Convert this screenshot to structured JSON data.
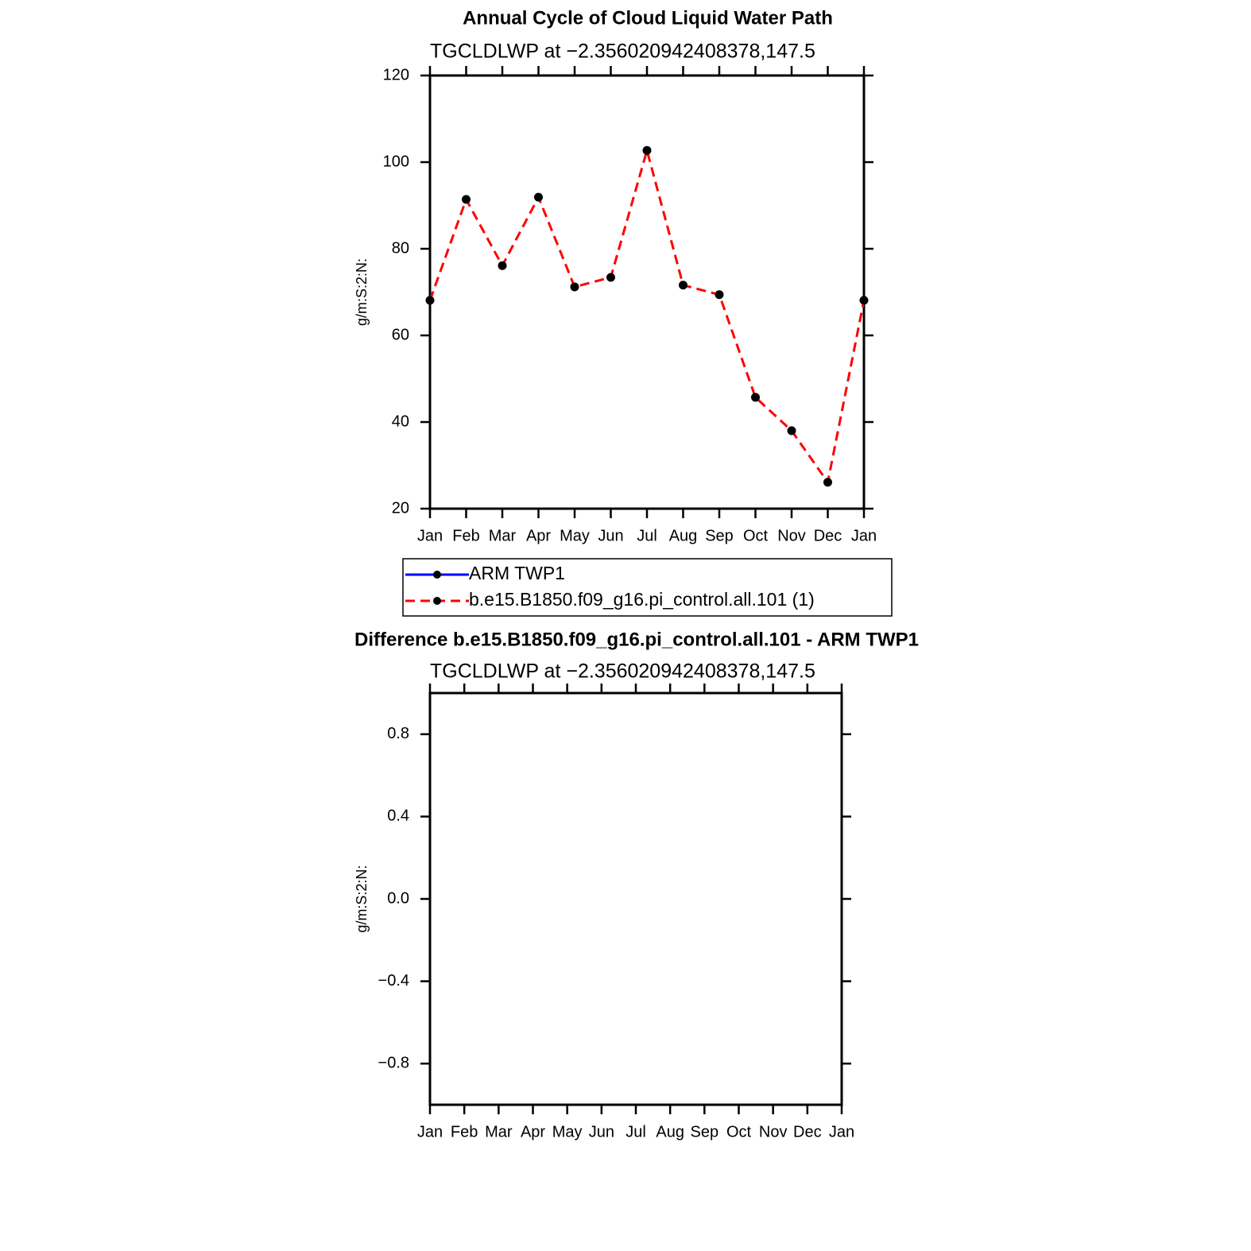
{
  "chart_data": [
    {
      "type": "line",
      "title": "Annual Cycle of Cloud Liquid Water Path",
      "subtitle": "TGCLDLWP at −2.356020942408378,147.5",
      "y_label": "g/m:S:2:N:",
      "categories": [
        "Jan",
        "Feb",
        "Mar",
        "Apr",
        "May",
        "Jun",
        "Jul",
        "Aug",
        "Sep",
        "Oct",
        "Nov",
        "Dec",
        "Jan"
      ],
      "series": [
        {
          "name": "ARM TWP1",
          "color": "#0000ff",
          "dashed": false,
          "values": [
            null,
            null,
            null,
            null,
            null,
            null,
            null,
            null,
            null,
            null,
            null,
            null,
            null
          ]
        },
        {
          "name": "b.e15.B1850.f09_g16.pi_control.all.101 (1)",
          "color": "#ff0000",
          "dashed": true,
          "values": [
            68.1,
            91.4,
            76.1,
            91.9,
            71.2,
            73.4,
            102.7,
            71.6,
            69.4,
            45.7,
            38,
            26.1,
            68.1
          ]
        }
      ],
      "ylim": [
        20,
        120
      ],
      "yticks": [
        20,
        40,
        60,
        80,
        100,
        120
      ]
    },
    {
      "type": "line",
      "title": "Difference b.e15.B1850.f09_g16.pi_control.all.101 - ARM TWP1",
      "subtitle": "TGCLDLWP at −2.356020942408378,147.5",
      "y_label": "g/m:S:2:N:",
      "categories": [
        "Jan",
        "Feb",
        "Mar",
        "Apr",
        "May",
        "Jun",
        "Jul",
        "Aug",
        "Sep",
        "Oct",
        "Nov",
        "Dec",
        "Jan"
      ],
      "ylim": [
        -1,
        1
      ],
      "yticks": [
        {
          "value": -0.8,
          "label": "−0.8"
        },
        {
          "value": -0.4,
          "label": "−0.4"
        },
        {
          "value": 0,
          "label": "0.0"
        },
        0.4,
        0.8
      ]
    }
  ]
}
